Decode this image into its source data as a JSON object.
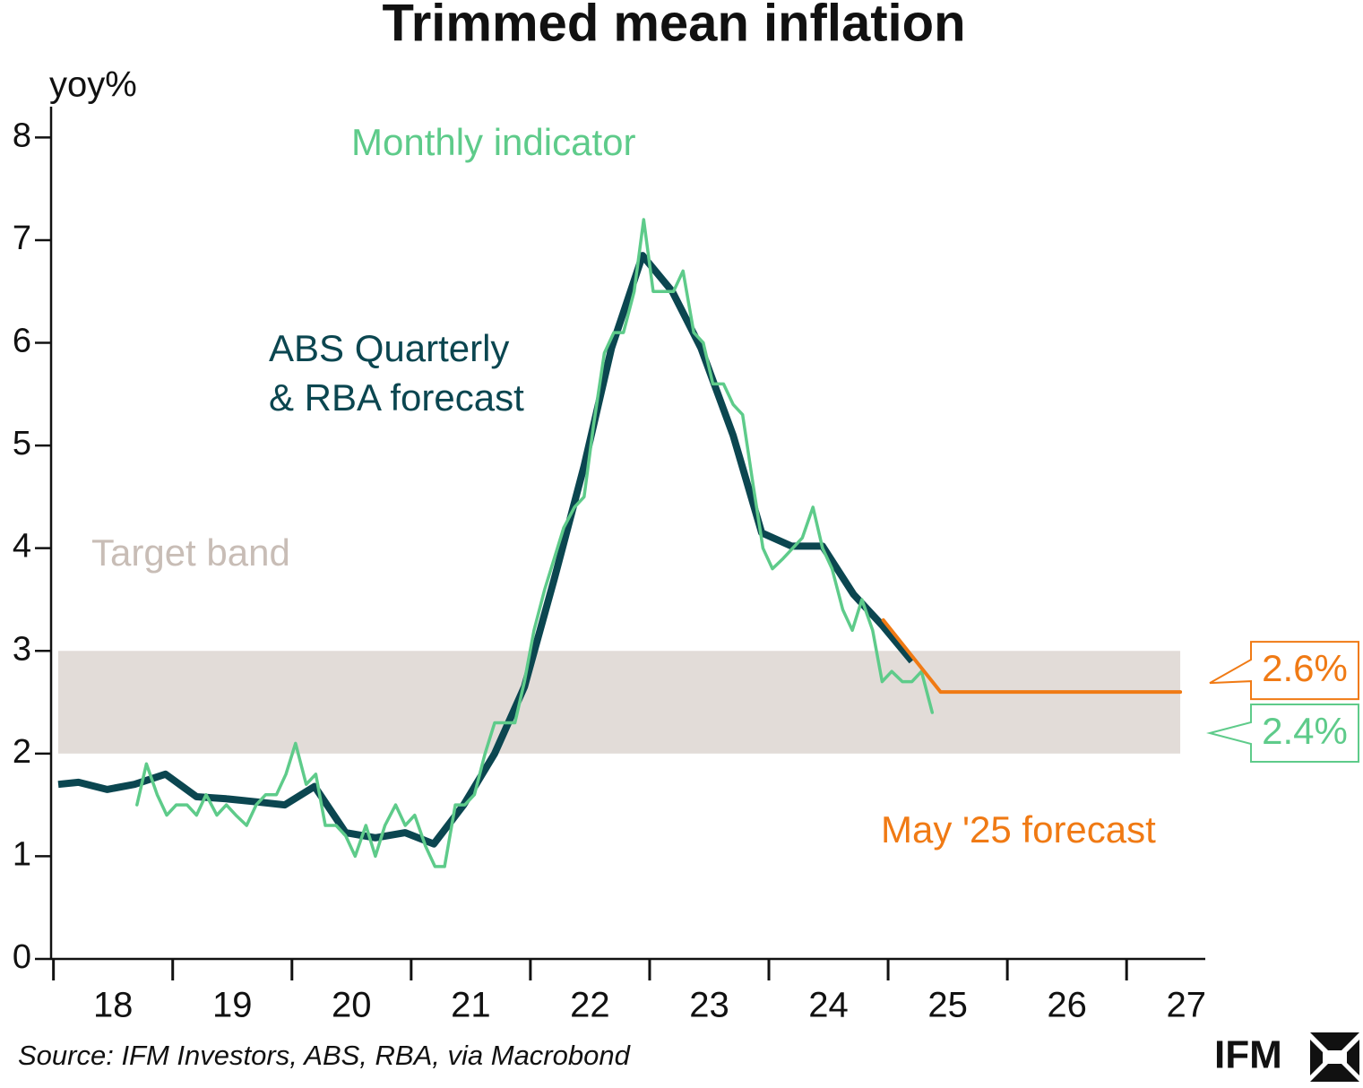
{
  "chart_data": {
    "type": "line",
    "title": "Trimmed mean inflation",
    "ylabel": "yoy%",
    "source": "Source: IFM Investors, ABS, RBA, via Macrobond",
    "logo": "IFM",
    "xlim": [
      2017.98,
      2027.66
    ],
    "xticks": [
      {
        "value": 2018.5,
        "label": "18"
      },
      {
        "value": 2019.5,
        "label": "19"
      },
      {
        "value": 2020.5,
        "label": "20"
      },
      {
        "value": 2021.5,
        "label": "21"
      },
      {
        "value": 2022.5,
        "label": "22"
      },
      {
        "value": 2023.5,
        "label": "23"
      },
      {
        "value": 2024.5,
        "label": "24"
      },
      {
        "value": 2025.5,
        "label": "25"
      },
      {
        "value": 2026.5,
        "label": "26"
      },
      {
        "value": 2027.5,
        "label": "27"
      }
    ],
    "xtick_marks": [
      2018,
      2019,
      2020,
      2021,
      2022,
      2023,
      2024,
      2025,
      2026,
      2027
    ],
    "ylim": [
      0,
      8.3
    ],
    "yticks": [
      0,
      1,
      2,
      3,
      4,
      5,
      6,
      7,
      8
    ],
    "band": {
      "label": "Target band",
      "range": [
        2,
        3
      ],
      "xrange": [
        2018.04,
        2027.45
      ],
      "color": "#e2dcd8",
      "label_color": "#c8bdb6"
    },
    "series": [
      {
        "label": [
          "ABS Quarterly",
          "& RBA forecast"
        ],
        "color": "#0b4650",
        "x": [
          2018.04,
          2018.21,
          2018.45,
          2018.68,
          2018.94,
          2019.2,
          2019.45,
          2019.7,
          2019.94,
          2020.19,
          2020.45,
          2020.7,
          2020.95,
          2021.19,
          2021.44,
          2021.7,
          2021.95,
          2022.2,
          2022.45,
          2022.68,
          2022.94,
          2023.19,
          2023.43,
          2023.7,
          2023.94,
          2024.19,
          2024.45,
          2024.71,
          2024.95,
          2025.2
        ],
        "values": [
          1.7,
          1.72,
          1.65,
          1.7,
          1.8,
          1.58,
          1.56,
          1.53,
          1.5,
          1.68,
          1.23,
          1.18,
          1.23,
          1.12,
          1.5,
          2.0,
          2.65,
          3.7,
          4.8,
          5.95,
          6.85,
          6.5,
          5.95,
          5.1,
          4.15,
          4.02,
          4.02,
          3.55,
          3.25,
          2.9
        ]
      },
      {
        "name": "Monthly indicator",
        "color": "#5ecb8a",
        "end_label": "2.4%",
        "x": [
          2018.7,
          2018.78,
          2018.87,
          2018.95,
          2019.03,
          2019.12,
          2019.2,
          2019.28,
          2019.37,
          2019.45,
          2019.53,
          2019.62,
          2019.7,
          2019.78,
          2019.87,
          2019.95,
          2020.03,
          2020.12,
          2020.2,
          2020.28,
          2020.37,
          2020.45,
          2020.53,
          2020.62,
          2020.7,
          2020.78,
          2020.87,
          2020.95,
          2021.03,
          2021.12,
          2021.2,
          2021.28,
          2021.37,
          2021.45,
          2021.53,
          2021.62,
          2021.7,
          2021.78,
          2021.87,
          2021.95,
          2022.03,
          2022.12,
          2022.2,
          2022.28,
          2022.37,
          2022.45,
          2022.53,
          2022.62,
          2022.7,
          2022.78,
          2022.87,
          2022.95,
          2023.03,
          2023.12,
          2023.2,
          2023.28,
          2023.37,
          2023.45,
          2023.53,
          2023.62,
          2023.7,
          2023.78,
          2023.87,
          2023.95,
          2024.03,
          2024.12,
          2024.2,
          2024.28,
          2024.37,
          2024.45,
          2024.53,
          2024.62,
          2024.7,
          2024.78,
          2024.87,
          2024.95,
          2025.03,
          2025.12,
          2025.2,
          2025.28,
          2025.37
        ],
        "values": [
          1.5,
          1.9,
          1.6,
          1.4,
          1.5,
          1.5,
          1.4,
          1.6,
          1.4,
          1.5,
          1.4,
          1.3,
          1.5,
          1.6,
          1.6,
          1.8,
          2.1,
          1.7,
          1.8,
          1.3,
          1.3,
          1.2,
          1.0,
          1.3,
          1.0,
          1.3,
          1.5,
          1.3,
          1.4,
          1.1,
          0.9,
          0.9,
          1.5,
          1.5,
          1.6,
          2.0,
          2.3,
          2.3,
          2.3,
          2.7,
          3.2,
          3.6,
          3.9,
          4.2,
          4.4,
          4.5,
          5.2,
          5.9,
          6.1,
          6.1,
          6.5,
          7.2,
          6.5,
          6.5,
          6.5,
          6.7,
          6.1,
          6.0,
          5.6,
          5.6,
          5.4,
          5.3,
          4.6,
          4.0,
          3.8,
          3.9,
          4.0,
          4.1,
          4.4,
          4.0,
          3.8,
          3.4,
          3.2,
          3.5,
          3.2,
          2.7,
          2.8,
          2.7,
          2.7,
          2.8,
          2.4
        ]
      },
      {
        "name": "May '25 forecast",
        "color": "#f07a14",
        "end_label": "2.6%",
        "x": [
          2024.96,
          2025.44,
          2027.45
        ],
        "values": [
          3.3,
          2.6,
          2.6
        ]
      }
    ]
  }
}
